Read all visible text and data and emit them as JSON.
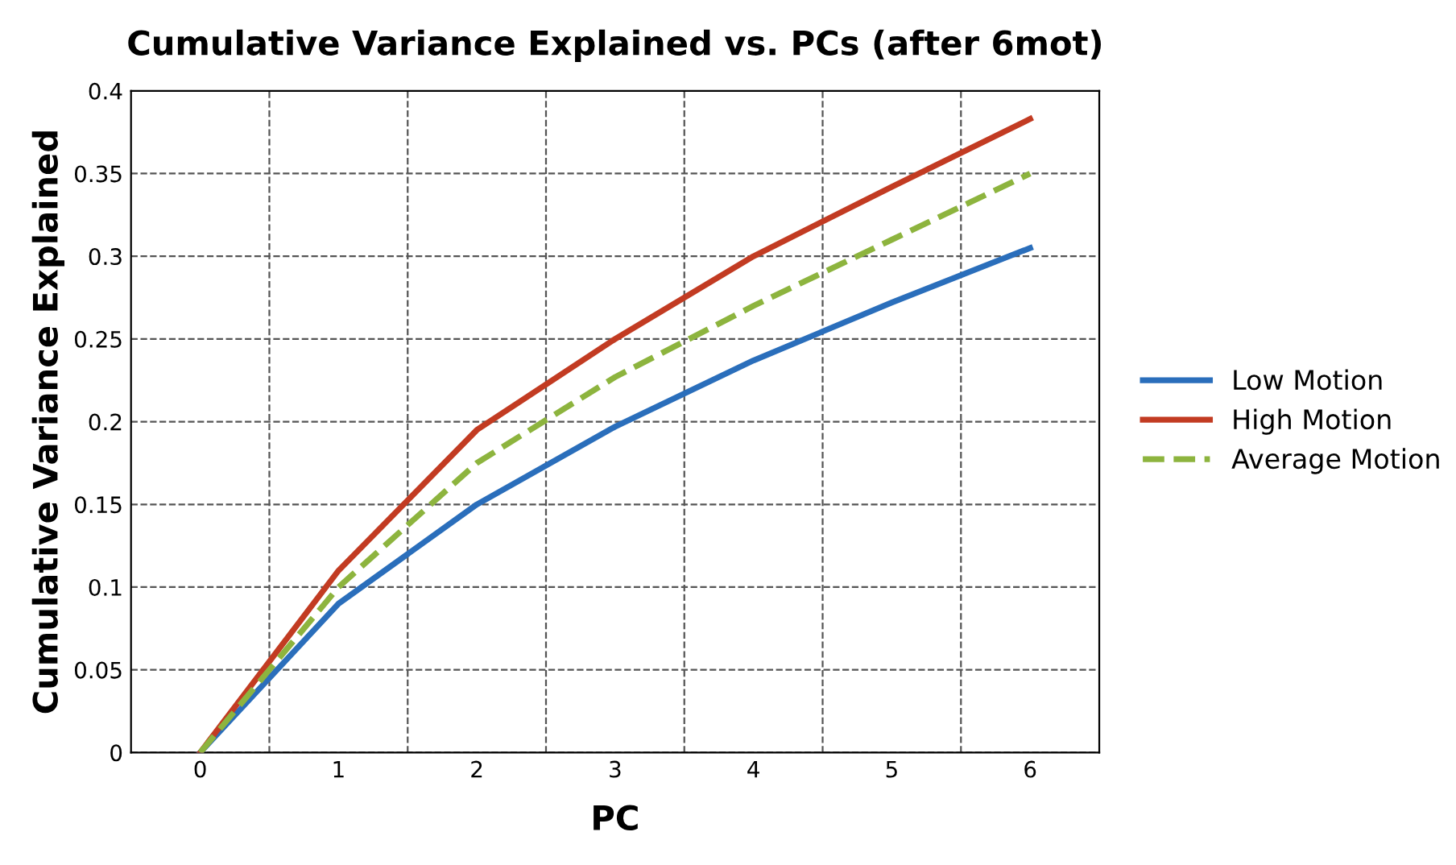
{
  "chart_data": {
    "type": "line",
    "title": "Cumulative Variance Explained vs. PCs (after 6mot)",
    "xlabel": "PC",
    "ylabel": "Cumulative Variance Explained",
    "categories": [
      "0",
      "1",
      "2",
      "3",
      "4",
      "5",
      "6"
    ],
    "series": [
      {
        "name": "Low Motion",
        "color": "#2a6ebb",
        "line_style": "solid",
        "values": [
          0,
          0.09,
          0.15,
          0.197,
          0.237,
          0.272,
          0.305
        ]
      },
      {
        "name": "High Motion",
        "color": "#c23b22",
        "line_style": "solid",
        "values": [
          0,
          0.11,
          0.195,
          0.25,
          0.3,
          0.342,
          0.383
        ]
      },
      {
        "name": "Average Motion",
        "color": "#8db43e",
        "line_style": "dashed",
        "values": [
          0,
          0.1,
          0.175,
          0.227,
          0.27,
          0.31,
          0.35
        ]
      }
    ],
    "ylim": [
      0,
      0.4
    ],
    "yticks": [
      0,
      0.05,
      0.1,
      0.15,
      0.2,
      0.25,
      0.3,
      0.35,
      0.4
    ],
    "grid": true,
    "legend": "right",
    "marker": "none"
  }
}
